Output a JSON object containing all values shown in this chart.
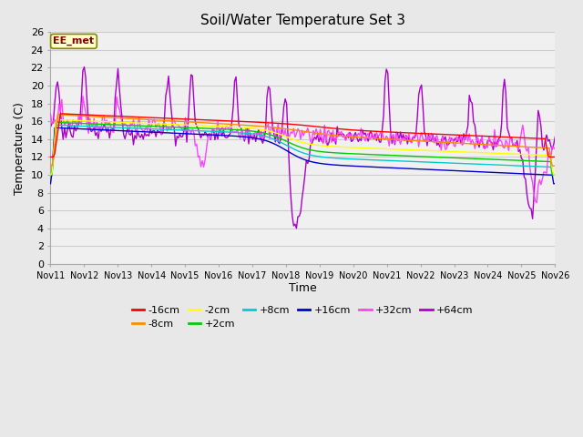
{
  "title": "Soil/Water Temperature Set 3",
  "xlabel": "Time",
  "ylabel": "Temperature (C)",
  "xlim": [
    0,
    15
  ],
  "ylim": [
    0,
    26
  ],
  "yticks": [
    0,
    2,
    4,
    6,
    8,
    10,
    12,
    14,
    16,
    18,
    20,
    22,
    24,
    26
  ],
  "xtick_labels": [
    "Nov 11",
    "Nov 12",
    "Nov 13",
    "Nov 14",
    "Nov 15",
    "Nov 16",
    "Nov 17",
    "Nov 18",
    "Nov 19",
    "Nov 20",
    "Nov 21",
    "Nov 22",
    "Nov 23",
    "Nov 24",
    "Nov 25",
    "Nov 26"
  ],
  "annotation_text": "EE_met",
  "series_colors": {
    "-16cm": "#ff0000",
    "-8cm": "#ff8c00",
    "-2cm": "#ffff00",
    "+2cm": "#00cc00",
    "+8cm": "#00cccc",
    "+16cm": "#0000cc",
    "+32cm": "#ff44ff",
    "+64cm": "#aa00cc"
  },
  "bg_color": "#e8e8e8",
  "linewidth": 1.0,
  "legend_row1": [
    "-16cm",
    "-8cm",
    "-2cm",
    "+2cm",
    "+8cm",
    "+16cm"
  ],
  "legend_row2": [
    "+32cm",
    "+64cm"
  ]
}
